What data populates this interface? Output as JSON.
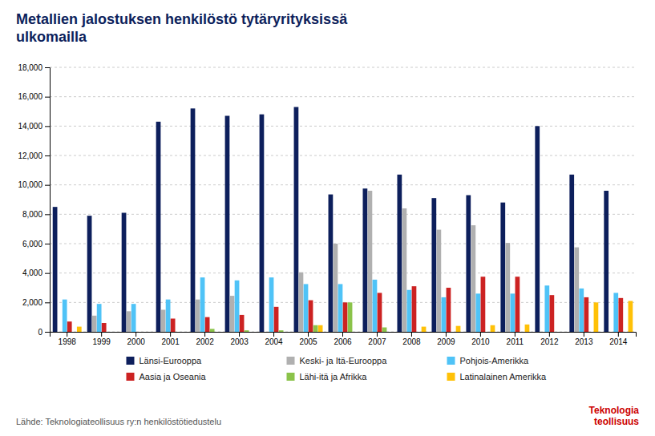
{
  "chart_data": {
    "type": "bar",
    "title": "Metallien jalostuksen henkilöstö tytäryrityksissä\nulkomailla",
    "categories": [
      "1998",
      "1999",
      "2000",
      "2001",
      "2002",
      "2003",
      "2004",
      "2005",
      "2006",
      "2007",
      "2008",
      "2009",
      "2010",
      "2011",
      "2012",
      "2013",
      "2014"
    ],
    "series": [
      {
        "name": "Länsi-Eurooppa",
        "color": "#0D1F5C",
        "values": [
          8500,
          7900,
          8100,
          14300,
          15200,
          14700,
          14800,
          15300,
          9350,
          9750,
          10700,
          9100,
          9300,
          8800,
          14000,
          10700,
          9600
        ]
      },
      {
        "name": "Keski- ja Itä-Eurooppa",
        "color": "#B0B0B0",
        "values": [
          0,
          1100,
          1400,
          1500,
          2200,
          2450,
          0,
          4050,
          6000,
          9600,
          8400,
          6950,
          7250,
          6050,
          0,
          5750,
          0
        ]
      },
      {
        "name": "Pohjois-Amerikka",
        "color": "#4FC3F7",
        "values": [
          2200,
          1900,
          1900,
          2200,
          3700,
          3500,
          3700,
          3250,
          3250,
          3550,
          2850,
          2350,
          2600,
          2600,
          3150,
          2950,
          2650
        ]
      },
      {
        "name": "Aasia ja Oseania",
        "color": "#CC2222",
        "values": [
          700,
          600,
          0,
          900,
          1000,
          1150,
          1700,
          2150,
          2000,
          2650,
          3100,
          3000,
          3750,
          3750,
          2500,
          2350,
          2300
        ]
      },
      {
        "name": "Lähi-itä ja Afrikka",
        "color": "#8BC34A",
        "values": [
          0,
          0,
          0,
          0,
          200,
          100,
          100,
          450,
          2000,
          300,
          0,
          0,
          0,
          0,
          0,
          0,
          0
        ]
      },
      {
        "name": "Latinalainen Amerikka",
        "color": "#FFC107",
        "values": [
          350,
          0,
          0,
          0,
          0,
          0,
          0,
          450,
          0,
          0,
          350,
          400,
          450,
          500,
          0,
          2000,
          2100
        ]
      }
    ],
    "ylim": [
      0,
      18000
    ],
    "yticks": [
      0,
      {
        "value": 2000,
        "label": "2,000"
      },
      {
        "value": 4000,
        "label": "4,000"
      },
      {
        "value": 6000,
        "label": "6,000"
      },
      {
        "value": 8000,
        "label": "8,000"
      },
      {
        "value": 10000,
        "label": "10,000"
      },
      {
        "value": 12000,
        "label": "12,000"
      },
      {
        "value": 14000,
        "label": "14,000"
      },
      {
        "value": 16000,
        "label": "16,000"
      },
      {
        "value": 18000,
        "label": "18,000"
      }
    ],
    "grid": true,
    "legend": "bottom",
    "annotations": [
      "Lähde: Teknologiateollisuus ry:n henkilöstötiedustelu",
      "Teknologia",
      "teollisuus"
    ]
  }
}
